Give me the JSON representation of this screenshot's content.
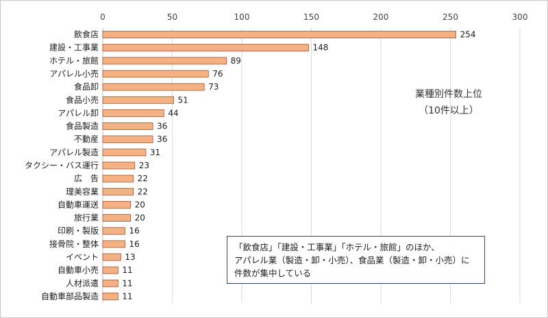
{
  "chart_data": {
    "type": "bar",
    "orientation": "horizontal",
    "title": "業種別件数上位",
    "subtitle": "（10件以上）",
    "categories": [
      "飲食店",
      "建設・工事業",
      "ホテル・旅館",
      "アパレル小売",
      "食品卸",
      "食品小売",
      "アパレル卸",
      "食品製造",
      "不動産",
      "アパレル製造",
      "タクシー・バス運行",
      "広　告",
      "理美容業",
      "自動車運送",
      "旅行業",
      "印刷・製版",
      "接骨院・整体",
      "イベント",
      "自動車小売",
      "人材派遣",
      "自動車部品製造"
    ],
    "values": [
      254,
      148,
      89,
      76,
      73,
      51,
      44,
      36,
      36,
      31,
      23,
      22,
      22,
      20,
      20,
      16,
      16,
      13,
      11,
      11,
      11
    ],
    "xlim": [
      0,
      300
    ],
    "xticks": [
      0,
      50,
      100,
      150,
      200,
      250,
      300
    ],
    "grid": true,
    "bar_color": "#f4b183",
    "bar_edge_color": "#a0522d"
  },
  "annotation": {
    "lines": [
      "「飲食店」「建設・工事業」「ホテル・旅館」のほか、",
      "アパレル業（製造・卸・小売）、食品業（製造・卸・小売）に",
      "件数が集中している"
    ]
  }
}
